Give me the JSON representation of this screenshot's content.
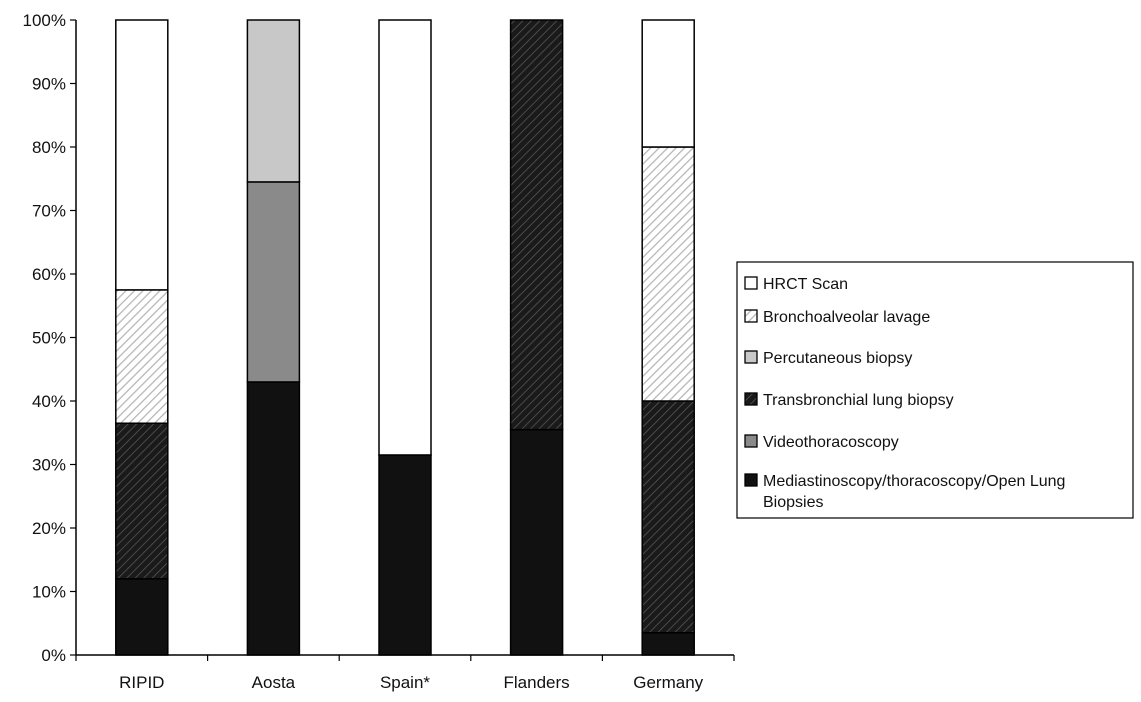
{
  "chart_data": {
    "type": "bar",
    "stacked": true,
    "categories": [
      "RIPID",
      "Aosta",
      "Spain*",
      "Flanders",
      "Germany"
    ],
    "series": [
      {
        "name": "Mediastinoscopy/thoracoscopy/Open Lung Biopsies",
        "values": [
          12,
          43,
          31.5,
          35.5,
          3.5
        ],
        "fill": "#111111",
        "pattern": "solid"
      },
      {
        "name": "Videothoracoscopy",
        "values": [
          0,
          31.5,
          0,
          0,
          0
        ],
        "fill": "#8a8a8a",
        "pattern": "solid"
      },
      {
        "name": "Transbronchial lung biopsy",
        "values": [
          24.5,
          0,
          0,
          64.5,
          36.5
        ],
        "fill": "#222222",
        "pattern": "hatch-dark"
      },
      {
        "name": "Percutaneous biopsy",
        "values": [
          0,
          25.5,
          0,
          0,
          0
        ],
        "fill": "#c8c8c8",
        "pattern": "solid"
      },
      {
        "name": "Bronchoalveolar lavage",
        "values": [
          21,
          0,
          0,
          0,
          40
        ],
        "fill": "#ffffff",
        "pattern": "hatch-light"
      },
      {
        "name": "HRCT Scan",
        "values": [
          42.5,
          0,
          68.5,
          0,
          20
        ],
        "fill": "#ffffff",
        "pattern": "solid"
      }
    ],
    "y_ticks": [
      "0%",
      "10%",
      "20%",
      "30%",
      "40%",
      "50%",
      "60%",
      "70%",
      "80%",
      "90%",
      "100%"
    ],
    "ylim": [
      0,
      100
    ],
    "legend_position": "right",
    "legend_order": [
      "HRCT Scan",
      "Bronchoalveolar lavage",
      "Percutaneous biopsy",
      "Transbronchial lung biopsy",
      "Videothoracoscopy",
      "Mediastinoscopy/thoracoscopy/Open Lung Biopsies"
    ],
    "grid": false
  }
}
